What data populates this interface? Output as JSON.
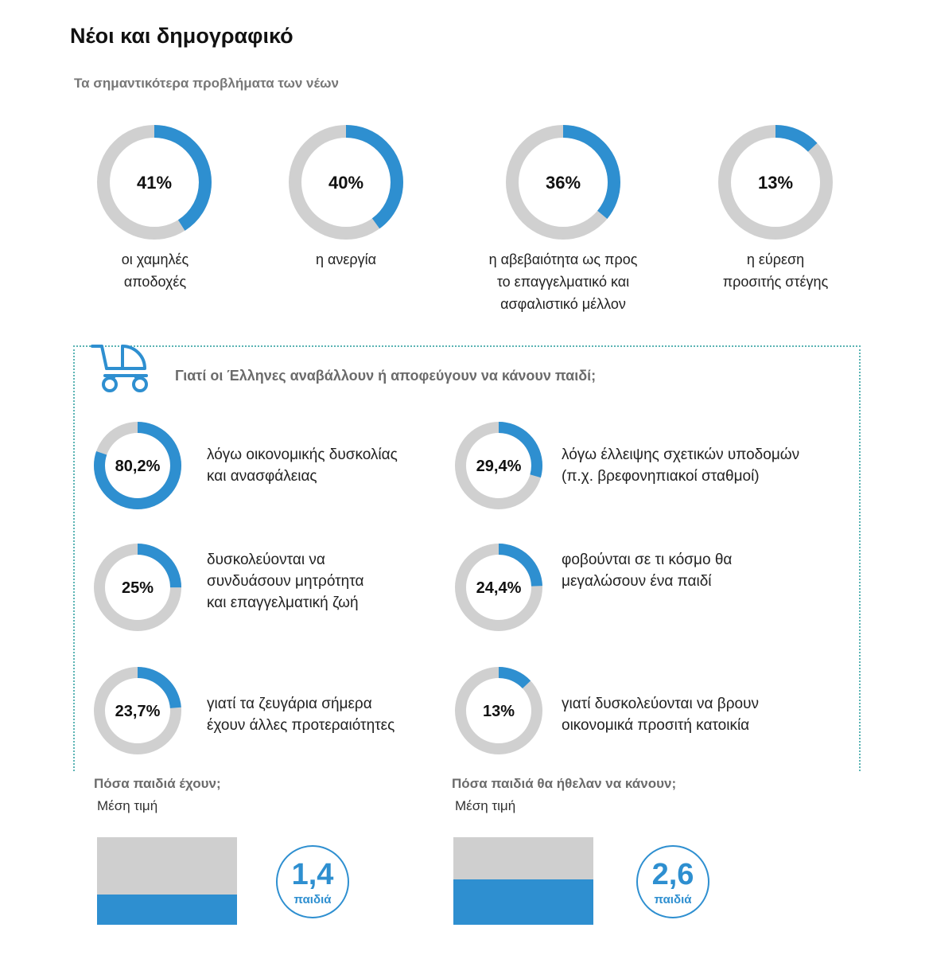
{
  "title": "Νέοι και δημογραφικό",
  "subtitle": "Τα σημαντικότερα προβλήματα των νέων",
  "chart_data": [
    {
      "type": "donut",
      "title": "Τα σημαντικότερα προβλήματα των νέων",
      "items": [
        {
          "value": 41,
          "label": "41%",
          "lines": [
            "οι χαμηλές",
            "αποδοχές"
          ]
        },
        {
          "value": 40,
          "label": "40%",
          "lines": [
            "η ανεργία"
          ]
        },
        {
          "value": 36,
          "label": "36%",
          "lines": [
            "η αβεβαιότητα ως προς",
            "το επαγγελματικό και",
            "ασφαλιστικό μέλλον"
          ]
        },
        {
          "value": 13,
          "label": "13%",
          "lines": [
            "η εύρεση",
            "προσιτής στέγης"
          ]
        }
      ]
    },
    {
      "type": "donut",
      "title": "Γιατί οι Έλληνες αναβάλλουν ή αποφεύγουν να κάνουν παιδί;",
      "items": [
        {
          "value": 80.2,
          "label": "80,2%",
          "lines": [
            "λόγω οικονομικής δυσκολίας",
            "και ανασφάλειας"
          ]
        },
        {
          "value": 29.4,
          "label": "29,4%",
          "lines": [
            "λόγω έλλειψης σχετικών υποδομών",
            "(π.χ. βρεφονηπιακοί σταθμοί)"
          ]
        },
        {
          "value": 25,
          "label": "25%",
          "lines": [
            "δυσκολεύονται να",
            "συνδυάσουν μητρότητα",
            "και επαγγελματική ζωή"
          ]
        },
        {
          "value": 24.4,
          "label": "24,4%",
          "lines": [
            "φοβούνται σε τι κόσμο θα",
            "μεγαλώσουν ένα παιδί"
          ]
        },
        {
          "value": 23.7,
          "label": "23,7%",
          "lines": [
            "γιατί τα ζευγάρια σήμερα",
            "έχουν άλλες προτεραιότητες"
          ]
        },
        {
          "value": 13,
          "label": "13%",
          "lines": [
            "γιατί δυσκολεύονται να βρουν",
            "οικονομικά προσιτή κατοικία"
          ]
        }
      ]
    },
    {
      "type": "bar",
      "title": "Πόσα παιδιά έχουν;",
      "subtitle": "Μέση τιμή",
      "value": 1.4,
      "value_label": "1,4",
      "unit": "παιδιά",
      "ylim": [
        0,
        4
      ]
    },
    {
      "type": "bar",
      "title": "Πόσα παιδιά θα ήθελαν να κάνουν;",
      "subtitle": "Μέση τιμή",
      "value": 2.6,
      "value_label": "2,6",
      "unit": "παιδιά",
      "ylim": [
        0,
        5
      ]
    }
  ],
  "colors": {
    "accent": "#2e8fd0",
    "track": "#d0d0d0",
    "dotted": "#5bb4b4",
    "muted": "#6b6b6b"
  },
  "icon": "stroller-icon"
}
